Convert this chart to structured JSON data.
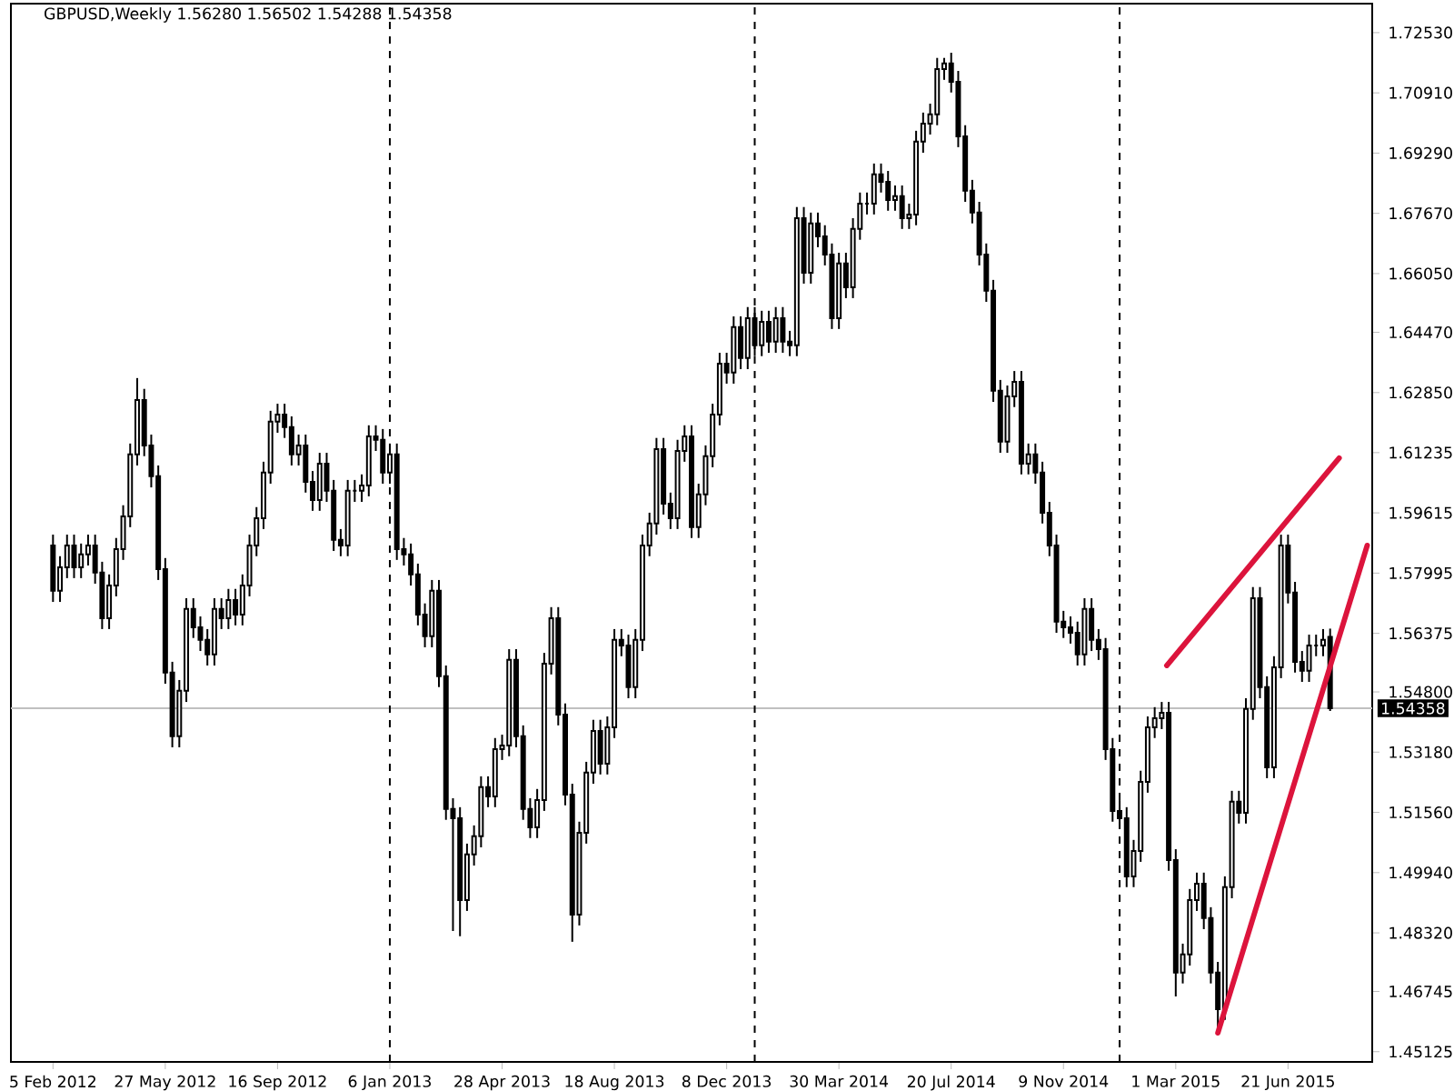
{
  "chart_data": {
    "type": "candlestick",
    "title": "GBPUSD,Weekly  1.56280 1.56502 1.54288 1.54358",
    "x": [
      "2012-02-05",
      "2012-02-12",
      "2012-02-19",
      "2012-02-26",
      "2012-03-04",
      "2012-03-11",
      "2012-03-18",
      "2012-03-25",
      "2012-04-01",
      "2012-04-08",
      "2012-04-15",
      "2012-04-22",
      "2012-04-29",
      "2012-05-06",
      "2012-05-13",
      "2012-05-20",
      "2012-05-27",
      "2012-06-03",
      "2012-06-10",
      "2012-06-17",
      "2012-06-24",
      "2012-07-01",
      "2012-07-08",
      "2012-07-15",
      "2012-07-22",
      "2012-07-29",
      "2012-08-05",
      "2012-08-12",
      "2012-08-19",
      "2012-08-26",
      "2012-09-02",
      "2012-09-09",
      "2012-09-16",
      "2012-09-23",
      "2012-09-30",
      "2012-10-07",
      "2012-10-14",
      "2012-10-21",
      "2012-10-28",
      "2012-11-04",
      "2012-11-11",
      "2012-11-18",
      "2012-11-25",
      "2012-12-02",
      "2012-12-09",
      "2012-12-16",
      "2012-12-23",
      "2012-12-30",
      "2013-01-06",
      "2013-01-13",
      "2013-01-20",
      "2013-01-27",
      "2013-02-03",
      "2013-02-10",
      "2013-02-17",
      "2013-02-24",
      "2013-03-03",
      "2013-03-10",
      "2013-03-17",
      "2013-03-24",
      "2013-03-31",
      "2013-04-07",
      "2013-04-14",
      "2013-04-21",
      "2013-04-28",
      "2013-05-05",
      "2013-05-12",
      "2013-05-19",
      "2013-05-26",
      "2013-06-02",
      "2013-06-09",
      "2013-06-16",
      "2013-06-23",
      "2013-06-30",
      "2013-07-07",
      "2013-07-14",
      "2013-07-21",
      "2013-07-28",
      "2013-08-04",
      "2013-08-11",
      "2013-08-18",
      "2013-08-25",
      "2013-09-01",
      "2013-09-08",
      "2013-09-15",
      "2013-09-22",
      "2013-09-29",
      "2013-10-06",
      "2013-10-13",
      "2013-10-20",
      "2013-10-27",
      "2013-11-03",
      "2013-11-10",
      "2013-11-17",
      "2013-11-24",
      "2013-12-01",
      "2013-12-08",
      "2013-12-15",
      "2013-12-22",
      "2013-12-29",
      "2014-01-05",
      "2014-01-12",
      "2014-01-19",
      "2014-01-26",
      "2014-02-02",
      "2014-02-09",
      "2014-02-16",
      "2014-02-23",
      "2014-03-02",
      "2014-03-09",
      "2014-03-16",
      "2014-03-23",
      "2014-03-30",
      "2014-04-06",
      "2014-04-13",
      "2014-04-20",
      "2014-04-27",
      "2014-05-04",
      "2014-05-11",
      "2014-05-18",
      "2014-05-25",
      "2014-06-01",
      "2014-06-08",
      "2014-06-15",
      "2014-06-22",
      "2014-06-29",
      "2014-07-06",
      "2014-07-13",
      "2014-07-20",
      "2014-07-27",
      "2014-08-03",
      "2014-08-10",
      "2014-08-17",
      "2014-08-24",
      "2014-08-31",
      "2014-09-07",
      "2014-09-14",
      "2014-09-21",
      "2014-09-28",
      "2014-10-05",
      "2014-10-12",
      "2014-10-19",
      "2014-10-26",
      "2014-11-02",
      "2014-11-09",
      "2014-11-16",
      "2014-11-23",
      "2014-11-30",
      "2014-12-07",
      "2014-12-14",
      "2014-12-21",
      "2014-12-28",
      "2015-01-04",
      "2015-01-11",
      "2015-01-18",
      "2015-01-25",
      "2015-02-01",
      "2015-02-08",
      "2015-02-15",
      "2015-02-22",
      "2015-03-01",
      "2015-03-08",
      "2015-03-15",
      "2015-03-22",
      "2015-03-29",
      "2015-04-05",
      "2015-04-12",
      "2015-04-19",
      "2015-04-26",
      "2015-05-03",
      "2015-05-10",
      "2015-05-17",
      "2015-05-24",
      "2015-05-31",
      "2015-06-07",
      "2015-06-14",
      "2015-06-21",
      "2015-06-28",
      "2015-07-05",
      "2015-07-12",
      "2015-07-19",
      "2015-07-26",
      "2015-08-02"
    ],
    "series": [
      {
        "color": "#000000",
        "ohlc": [
          [
            1.5874,
            1.5903,
            1.5722,
            1.5752
          ],
          [
            1.5752,
            1.5845,
            1.5722,
            1.5815
          ],
          [
            1.5815,
            1.5903,
            1.5786,
            1.5874
          ],
          [
            1.5874,
            1.5903,
            1.5786,
            1.5815
          ],
          [
            1.5815,
            1.5879,
            1.5786,
            1.585
          ],
          [
            1.585,
            1.5903,
            1.582,
            1.5874
          ],
          [
            1.5874,
            1.5903,
            1.5771,
            1.5801
          ],
          [
            1.5801,
            1.583,
            1.5649,
            1.5678
          ],
          [
            1.5678,
            1.5796,
            1.5649,
            1.5766
          ],
          [
            1.5766,
            1.5894,
            1.5737,
            1.5864
          ],
          [
            1.5864,
            1.5982,
            1.5835,
            1.5952
          ],
          [
            1.5952,
            1.6148,
            1.5923,
            1.6119
          ],
          [
            1.6119,
            1.6324,
            1.6089,
            1.6265
          ],
          [
            1.6265,
            1.6295,
            1.6114,
            1.6143
          ],
          [
            1.6143,
            1.6172,
            1.603,
            1.606
          ],
          [
            1.606,
            1.6089,
            1.5781,
            1.581
          ],
          [
            1.581,
            1.584,
            1.5502,
            1.5532
          ],
          [
            1.5532,
            1.5561,
            1.5331,
            1.5361
          ],
          [
            1.5361,
            1.5512,
            1.5331,
            1.5483
          ],
          [
            1.5483,
            1.5732,
            1.5453,
            1.5703
          ],
          [
            1.5703,
            1.5732,
            1.5625,
            1.5654
          ],
          [
            1.5654,
            1.5683,
            1.559,
            1.562
          ],
          [
            1.562,
            1.5649,
            1.5551,
            1.5581
          ],
          [
            1.5581,
            1.5732,
            1.5551,
            1.5703
          ],
          [
            1.5703,
            1.5732,
            1.5649,
            1.5678
          ],
          [
            1.5678,
            1.5757,
            1.5649,
            1.5727
          ],
          [
            1.5727,
            1.5757,
            1.5659,
            1.5688
          ],
          [
            1.5688,
            1.5796,
            1.5659,
            1.5766
          ],
          [
            1.5766,
            1.5903,
            1.5737,
            1.5874
          ],
          [
            1.5874,
            1.5977,
            1.5845,
            1.5947
          ],
          [
            1.5947,
            1.6099,
            1.5918,
            1.607
          ],
          [
            1.607,
            1.6236,
            1.604,
            1.6207
          ],
          [
            1.6207,
            1.6255,
            1.6177,
            1.6226
          ],
          [
            1.6226,
            1.6255,
            1.6163,
            1.6192
          ],
          [
            1.6192,
            1.6221,
            1.6089,
            1.6119
          ],
          [
            1.6119,
            1.6172,
            1.6089,
            1.6143
          ],
          [
            1.6143,
            1.6172,
            1.6016,
            1.6045
          ],
          [
            1.6045,
            1.6074,
            1.5967,
            1.5996
          ],
          [
            1.5996,
            1.6123,
            1.5967,
            1.6094
          ],
          [
            1.6094,
            1.6123,
            1.5991,
            1.6021
          ],
          [
            1.6021,
            1.605,
            1.5859,
            1.5889
          ],
          [
            1.5889,
            1.5918,
            1.5845,
            1.5874
          ],
          [
            1.5874,
            1.605,
            1.5845,
            1.6021
          ],
          [
            1.6021,
            1.605,
            1.5991,
            1.6021
          ],
          [
            1.6021,
            1.6065,
            1.5991,
            1.6035
          ],
          [
            1.6035,
            1.6197,
            1.6006,
            1.6167
          ],
          [
            1.6167,
            1.6197,
            1.6128,
            1.6158
          ],
          [
            1.6158,
            1.6187,
            1.604,
            1.607
          ],
          [
            1.607,
            1.6148,
            1.604,
            1.6119
          ],
          [
            1.6119,
            1.6148,
            1.5835,
            1.5864
          ],
          [
            1.5864,
            1.5894,
            1.582,
            1.585
          ],
          [
            1.585,
            1.5879,
            1.5766,
            1.5796
          ],
          [
            1.5796,
            1.5825,
            1.5659,
            1.5688
          ],
          [
            1.5688,
            1.5718,
            1.56,
            1.563
          ],
          [
            1.563,
            1.5781,
            1.56,
            1.5752
          ],
          [
            1.5752,
            1.5781,
            1.5493,
            1.5522
          ],
          [
            1.5522,
            1.5551,
            1.5136,
            1.5165
          ],
          [
            1.5165,
            1.5194,
            1.4837,
            1.514
          ],
          [
            1.514,
            1.517,
            1.4823,
            1.492
          ],
          [
            1.492,
            1.5072,
            1.4891,
            1.5043
          ],
          [
            1.5043,
            1.5121,
            1.5013,
            1.5092
          ],
          [
            1.5092,
            1.5253,
            1.5062,
            1.5224
          ],
          [
            1.5224,
            1.5253,
            1.517,
            1.5199
          ],
          [
            1.5199,
            1.5356,
            1.517,
            1.5326
          ],
          [
            1.5326,
            1.5365,
            1.5297,
            1.5336
          ],
          [
            1.5336,
            1.5595,
            1.5307,
            1.5566
          ],
          [
            1.5566,
            1.5595,
            1.5331,
            1.5361
          ],
          [
            1.5361,
            1.539,
            1.5136,
            1.5165
          ],
          [
            1.5165,
            1.5194,
            1.5087,
            1.5116
          ],
          [
            1.5116,
            1.5219,
            1.5087,
            1.5189
          ],
          [
            1.5189,
            1.5585,
            1.516,
            1.5556
          ],
          [
            1.5556,
            1.5708,
            1.5527,
            1.5678
          ],
          [
            1.5678,
            1.5708,
            1.539,
            1.5419
          ],
          [
            1.5419,
            1.5449,
            1.5175,
            1.5204
          ],
          [
            1.5204,
            1.5233,
            1.4808,
            1.4881
          ],
          [
            1.4881,
            1.5131,
            1.4852,
            1.5101
          ],
          [
            1.5101,
            1.5292,
            1.5072,
            1.5263
          ],
          [
            1.5263,
            1.5405,
            1.5233,
            1.5375
          ],
          [
            1.5375,
            1.5405,
            1.5258,
            1.5287
          ],
          [
            1.5287,
            1.5414,
            1.5258,
            1.5385
          ],
          [
            1.5385,
            1.5649,
            1.5356,
            1.562
          ],
          [
            1.562,
            1.5649,
            1.5576,
            1.5605
          ],
          [
            1.5605,
            1.5634,
            1.5463,
            1.5493
          ],
          [
            1.5493,
            1.5649,
            1.5463,
            1.562
          ],
          [
            1.562,
            1.5903,
            1.559,
            1.5874
          ],
          [
            1.5874,
            1.5962,
            1.5845,
            1.5933
          ],
          [
            1.5933,
            1.6163,
            1.5903,
            1.6133
          ],
          [
            1.6133,
            1.6163,
            1.5957,
            1.5986
          ],
          [
            1.5986,
            1.6016,
            1.5918,
            1.5947
          ],
          [
            1.5947,
            1.6158,
            1.5918,
            1.6128
          ],
          [
            1.6128,
            1.6197,
            1.6099,
            1.6167
          ],
          [
            1.6167,
            1.6197,
            1.5894,
            1.5923
          ],
          [
            1.5923,
            1.604,
            1.5894,
            1.6011
          ],
          [
            1.6011,
            1.6143,
            1.5982,
            1.6114
          ],
          [
            1.6114,
            1.6255,
            1.6084,
            1.6226
          ],
          [
            1.6226,
            1.6392,
            1.6197,
            1.6363
          ],
          [
            1.6363,
            1.6392,
            1.6309,
            1.6339
          ],
          [
            1.6339,
            1.649,
            1.6309,
            1.6461
          ],
          [
            1.6461,
            1.649,
            1.6348,
            1.6378
          ],
          [
            1.6378,
            1.6515,
            1.6348,
            1.6485
          ],
          [
            1.6485,
            1.6515,
            1.6383,
            1.6412
          ],
          [
            1.6412,
            1.6505,
            1.6383,
            1.6475
          ],
          [
            1.6475,
            1.6505,
            1.6392,
            1.6422
          ],
          [
            1.6422,
            1.6515,
            1.6392,
            1.6485
          ],
          [
            1.6485,
            1.6515,
            1.6392,
            1.6422
          ],
          [
            1.6422,
            1.6451,
            1.6383,
            1.6412
          ],
          [
            1.6412,
            1.6784,
            1.6383,
            1.6754
          ],
          [
            1.6754,
            1.6784,
            1.6578,
            1.6607
          ],
          [
            1.6607,
            1.6769,
            1.6578,
            1.674
          ],
          [
            1.674,
            1.6769,
            1.6676,
            1.6705
          ],
          [
            1.6705,
            1.6735,
            1.6627,
            1.6656
          ],
          [
            1.6656,
            1.6686,
            1.6456,
            1.6485
          ],
          [
            1.6485,
            1.6661,
            1.6456,
            1.6632
          ],
          [
            1.6632,
            1.6661,
            1.6539,
            1.6568
          ],
          [
            1.6568,
            1.6754,
            1.6539,
            1.6725
          ],
          [
            1.6725,
            1.6823,
            1.6696,
            1.6793
          ],
          [
            1.6793,
            1.6823,
            1.6764,
            1.6793
          ],
          [
            1.6793,
            1.6901,
            1.6764,
            1.6872
          ],
          [
            1.6872,
            1.6901,
            1.6823,
            1.6852
          ],
          [
            1.6852,
            1.6881,
            1.6774,
            1.6803
          ],
          [
            1.6803,
            1.6842,
            1.6774,
            1.6813
          ],
          [
            1.6813,
            1.6842,
            1.6725,
            1.6754
          ],
          [
            1.6754,
            1.6793,
            1.6725,
            1.6764
          ],
          [
            1.6764,
            1.6989,
            1.6735,
            1.696
          ],
          [
            1.696,
            1.7038,
            1.693,
            1.7008
          ],
          [
            1.7008,
            1.7062,
            1.6979,
            1.7033
          ],
          [
            1.7033,
            1.7185,
            1.7004,
            1.7155
          ],
          [
            1.7155,
            1.7185,
            1.7126,
            1.717
          ],
          [
            1.717,
            1.7199,
            1.7092,
            1.7121
          ],
          [
            1.7121,
            1.715,
            1.6945,
            1.6974
          ],
          [
            1.6974,
            1.7004,
            1.6798,
            1.6828
          ],
          [
            1.6828,
            1.6857,
            1.674,
            1.6769
          ],
          [
            1.6769,
            1.6798,
            1.6627,
            1.6656
          ],
          [
            1.6656,
            1.6686,
            1.6529,
            1.6559
          ],
          [
            1.6559,
            1.6588,
            1.626,
            1.629
          ],
          [
            1.629,
            1.6319,
            1.6123,
            1.6153
          ],
          [
            1.6153,
            1.6304,
            1.6123,
            1.6275
          ],
          [
            1.6275,
            1.6343,
            1.6246,
            1.6314
          ],
          [
            1.6314,
            1.6343,
            1.6065,
            1.6094
          ],
          [
            1.6094,
            1.6148,
            1.6065,
            1.6119
          ],
          [
            1.6119,
            1.6148,
            1.604,
            1.607
          ],
          [
            1.607,
            1.6099,
            1.5933,
            1.5962
          ],
          [
            1.5962,
            1.5991,
            1.5845,
            1.5874
          ],
          [
            1.5874,
            1.5903,
            1.5639,
            1.5669
          ],
          [
            1.5669,
            1.5698,
            1.5625,
            1.5654
          ],
          [
            1.5654,
            1.5683,
            1.561,
            1.5639
          ],
          [
            1.5639,
            1.5669,
            1.5551,
            1.5581
          ],
          [
            1.5581,
            1.5732,
            1.5551,
            1.5703
          ],
          [
            1.5703,
            1.5732,
            1.559,
            1.562
          ],
          [
            1.562,
            1.5649,
            1.5566,
            1.5595
          ],
          [
            1.5595,
            1.5625,
            1.5297,
            1.5326
          ],
          [
            1.5326,
            1.5356,
            1.5131,
            1.516
          ],
          [
            1.516,
            1.5189,
            1.5111,
            1.514
          ],
          [
            1.514,
            1.517,
            1.4955,
            1.4984
          ],
          [
            1.4984,
            1.5082,
            1.4955,
            1.5052
          ],
          [
            1.5052,
            1.5268,
            1.5023,
            1.5238
          ],
          [
            1.5238,
            1.5414,
            1.5209,
            1.5385
          ],
          [
            1.5385,
            1.5439,
            1.5356,
            1.5409
          ],
          [
            1.5409,
            1.5453,
            1.538,
            1.5424
          ],
          [
            1.5424,
            1.5453,
            1.4999,
            1.5028
          ],
          [
            1.5028,
            1.5057,
            1.4661,
            1.4725
          ],
          [
            1.4725,
            1.4803,
            1.4696,
            1.4774
          ],
          [
            1.4774,
            1.495,
            1.4744,
            1.492
          ],
          [
            1.492,
            1.4994,
            1.4891,
            1.4964
          ],
          [
            1.4964,
            1.4994,
            1.4842,
            1.4872
          ],
          [
            1.4872,
            1.4901,
            1.4696,
            1.4725
          ],
          [
            1.4725,
            1.4754,
            1.4573,
            1.4627
          ],
          [
            1.4627,
            1.4984,
            1.4598,
            1.4955
          ],
          [
            1.4955,
            1.5214,
            1.4925,
            1.5185
          ],
          [
            1.5185,
            1.5214,
            1.5126,
            1.5155
          ],
          [
            1.5155,
            1.5463,
            1.5126,
            1.5434
          ],
          [
            1.5434,
            1.5762,
            1.5405,
            1.5732
          ],
          [
            1.5732,
            1.5762,
            1.5463,
            1.5493
          ],
          [
            1.5493,
            1.5522,
            1.5248,
            1.5277
          ],
          [
            1.5277,
            1.5576,
            1.5248,
            1.5546
          ],
          [
            1.5546,
            1.5903,
            1.5517,
            1.5874
          ],
          [
            1.5874,
            1.5903,
            1.5718,
            1.5747
          ],
          [
            1.5747,
            1.5776,
            1.5532,
            1.5561
          ],
          [
            1.5561,
            1.559,
            1.5507,
            1.5537
          ],
          [
            1.5537,
            1.5634,
            1.5507,
            1.5605
          ],
          [
            1.5605,
            1.5634,
            1.5576,
            1.5605
          ],
          [
            1.5605,
            1.5649,
            1.5576,
            1.562
          ],
          [
            1.5628,
            1.56502,
            1.54288,
            1.54358
          ]
        ]
      },
      {
        "type": "line",
        "color": "#dc143c",
        "x": [
          "2015-02-20",
          "2015-08-11"
        ],
        "values": [
          1.5551,
          1.6109
        ]
      },
      {
        "type": "line",
        "color": "#dc143c",
        "x": [
          "2015-04-12",
          "2015-09-08"
        ],
        "values": [
          1.4563,
          1.5874
        ]
      }
    ],
    "xlim": [
      "2011-12-25",
      "2015-09-13"
    ],
    "ylim": [
      1.4485,
      1.7331
    ],
    "xticks": [
      {
        "value": "2012-02-05",
        "label": "5 Feb 2012"
      },
      {
        "value": "2012-05-27",
        "label": "27 May 2012"
      },
      {
        "value": "2012-09-16",
        "label": "16 Sep 2012"
      },
      {
        "value": "2013-01-06",
        "label": "6 Jan 2013"
      },
      {
        "value": "2013-04-28",
        "label": "28 Apr 2013"
      },
      {
        "value": "2013-08-18",
        "label": "18 Aug 2013"
      },
      {
        "value": "2013-12-08",
        "label": "8 Dec 2013"
      },
      {
        "value": "2014-03-30",
        "label": "30 Mar 2014"
      },
      {
        "value": "2014-07-20",
        "label": "20 Jul 2014"
      },
      {
        "value": "2014-11-09",
        "label": "9 Nov 2014"
      },
      {
        "value": "2015-03-01",
        "label": "1 Mar 2015"
      },
      {
        "value": "2015-06-21",
        "label": "21 Jun 2015"
      }
    ],
    "yticks": [
      {
        "value": 1.7253,
        "label": "1.72530"
      },
      {
        "value": 1.7091,
        "label": "1.70910"
      },
      {
        "value": 1.6929,
        "label": "1.69290"
      },
      {
        "value": 1.6767,
        "label": "1.67670"
      },
      {
        "value": 1.6605,
        "label": "1.66050"
      },
      {
        "value": 1.6447,
        "label": "1.64470"
      },
      {
        "value": 1.6285,
        "label": "1.62850"
      },
      {
        "value": 1.61235,
        "label": "1.61235"
      },
      {
        "value": 1.59615,
        "label": "1.59615"
      },
      {
        "value": 1.57995,
        "label": "1.57995"
      },
      {
        "value": 1.56375,
        "label": "1.56375"
      },
      {
        "value": 1.548,
        "label": "1.54800"
      },
      {
        "value": 1.5318,
        "label": "1.53180"
      },
      {
        "value": 1.5156,
        "label": "1.51560"
      },
      {
        "value": 1.4994,
        "label": "1.49940"
      },
      {
        "value": 1.4832,
        "label": "1.48320"
      },
      {
        "value": 1.46745,
        "label": "1.46745"
      },
      {
        "value": 1.45125,
        "label": "1.45125"
      }
    ],
    "ref_lines": [
      {
        "axis": "y",
        "value": 1.54358,
        "label": "1.54358",
        "color": "#c0c0c0"
      },
      {
        "axis": "x",
        "value": "2013-01-06",
        "color": "#000000",
        "line_style": "dashed"
      },
      {
        "axis": "x",
        "value": "2014-01-05",
        "color": "#000000",
        "line_style": "dashed"
      },
      {
        "axis": "x",
        "value": "2015-01-04",
        "color": "#000000",
        "line_style": "dashed"
      }
    ]
  }
}
